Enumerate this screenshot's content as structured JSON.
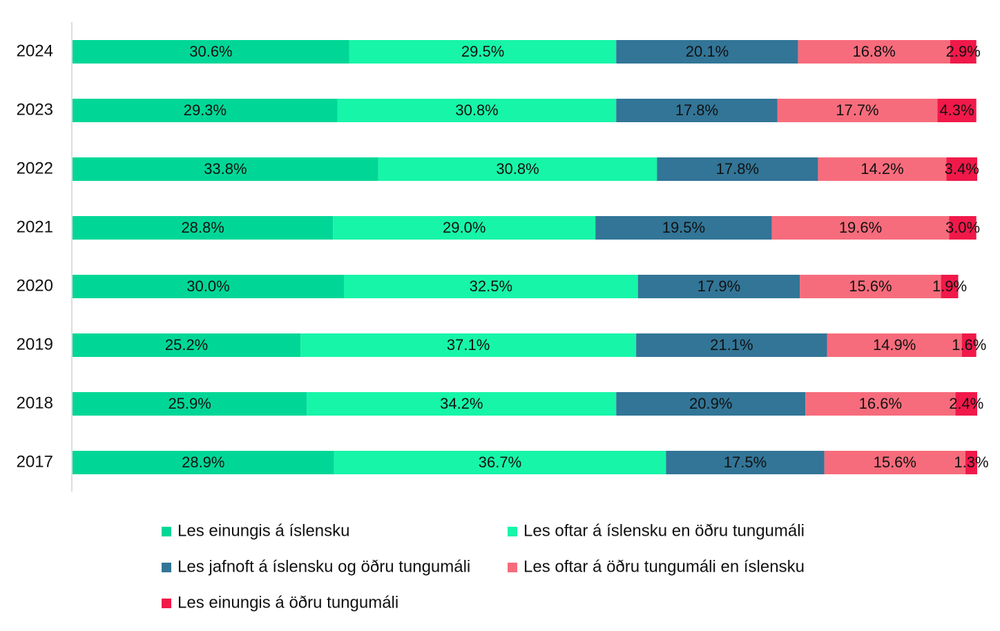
{
  "chart_data": {
    "type": "bar",
    "orientation": "horizontal",
    "stacked": true,
    "categories": [
      "2024",
      "2023",
      "2022",
      "2021",
      "2020",
      "2019",
      "2018",
      "2017"
    ],
    "xlim": [
      0,
      100
    ],
    "series": [
      {
        "name": "Les einungis á íslensku",
        "color": "#00d796",
        "values": [
          30.6,
          29.3,
          33.8,
          28.8,
          30.0,
          25.2,
          25.9,
          28.9
        ],
        "value_labels": [
          "30.6%",
          "29.3%",
          "33.8%",
          "28.8%",
          "30.0%",
          "25.2%",
          "25.9%",
          "28.9%"
        ]
      },
      {
        "name": "Les oftar á íslensku en öðru tungumáli",
        "color": "#17f5a8",
        "values": [
          29.5,
          30.8,
          30.8,
          29.0,
          32.5,
          37.1,
          34.2,
          36.7
        ],
        "value_labels": [
          "29.5%",
          "30.8%",
          "30.8%",
          "29.0%",
          "32.5%",
          "37.1%",
          "34.2%",
          "36.7%"
        ]
      },
      {
        "name": "Les jafnoft á íslensku og öðru tungumáli",
        "color": "#327597",
        "values": [
          20.1,
          17.8,
          17.8,
          19.5,
          17.9,
          21.1,
          20.9,
          17.5
        ],
        "value_labels": [
          "20.1%",
          "17.8%",
          "17.8%",
          "19.5%",
          "17.9%",
          "21.1%",
          "20.9%",
          "17.5%"
        ]
      },
      {
        "name": "Les oftar á öðru tungumáli en íslensku",
        "color": "#f76c7c",
        "values": [
          16.8,
          17.7,
          14.2,
          19.6,
          15.6,
          14.9,
          16.6,
          15.6
        ],
        "value_labels": [
          "16.8%",
          "17.7%",
          "14.2%",
          "19.6%",
          "15.6%",
          "14.9%",
          "16.6%",
          "15.6%"
        ]
      },
      {
        "name": "Les einungis á öðru tungumáli",
        "color": "#f0194a",
        "values": [
          2.9,
          4.3,
          3.4,
          3.0,
          1.9,
          1.6,
          2.4,
          1.3
        ],
        "value_labels": [
          "2.9%",
          "4.3%",
          "3.4%",
          "3.0%",
          "1.9%",
          "1.6%",
          "2.4%",
          "1.3%"
        ]
      }
    ]
  }
}
